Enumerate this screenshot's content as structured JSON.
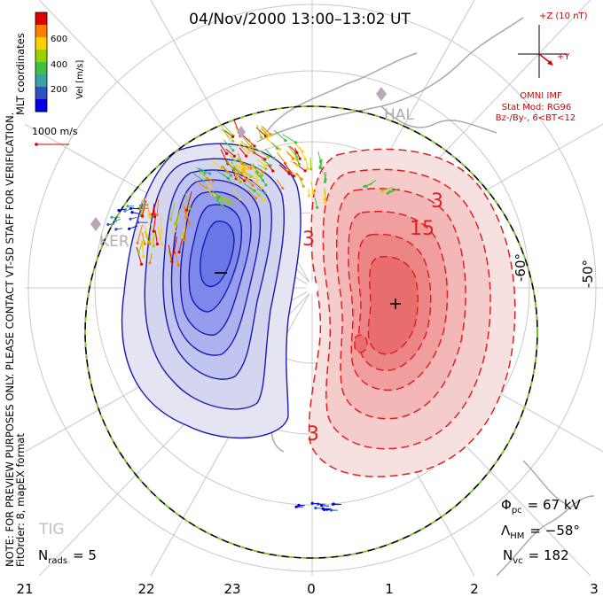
{
  "title": "04/Nov/2000 13:00–13:02 UT",
  "side_note_line1": "NOTE: FOR PREVIEW PURPOSES ONLY. PLEASE CONTACT VT-SD STAFF FOR VERIFICATION.",
  "side_note_line2": "FitOrder: 8, mapEX format",
  "coordinates_label": "MLT coordinates",
  "colorbar": {
    "label": "Vel [m/s]",
    "ticks": [
      "600",
      "400",
      "200"
    ],
    "colors": [
      "#e00000",
      "#ff7f00",
      "#ffd000",
      "#9ad000",
      "#40c040",
      "#3aa0a0",
      "#3050c0",
      "#0000e0"
    ]
  },
  "reference_vector_label": "1000 m/s",
  "imf": {
    "z_label": "+Z (10 nT)",
    "y_label": "+Y",
    "source": "OMNI IMF",
    "model_line1": "Stat Mod: RG96",
    "model_line2": "Bz-/By-, 6<BT<12"
  },
  "stations": [
    "HAL",
    "KER",
    "TIG"
  ],
  "contour_labels": [
    "3",
    "3",
    "15",
    "3"
  ],
  "extremum_markers": {
    "min": "−",
    "max": "+"
  },
  "latitude_labels": [
    "-60°",
    "-50°"
  ],
  "stats": {
    "phi_pc": "Φ",
    "phi_pc_sub": "pc",
    "phi_pc_value": "= 67 kV",
    "lambda_hm": "Λ",
    "lambda_hm_sub": "HM",
    "lambda_hm_value": "= −58°",
    "n_vc": "N",
    "n_vc_sub": "vc",
    "n_vc_value": "= 182",
    "n_rads": "N",
    "n_rads_sub": "rads",
    "n_rads_value": "= 5"
  },
  "mlt_axis_labels": [
    "21",
    "22",
    "23",
    "0",
    "1",
    "2",
    "3"
  ],
  "colors": {
    "negative_cell": "#1a1ab4",
    "positive_cell": "#e02020",
    "grid": "#c8c8c8",
    "land": "#a8a8a8",
    "hmb_dash": "#80d020"
  }
}
